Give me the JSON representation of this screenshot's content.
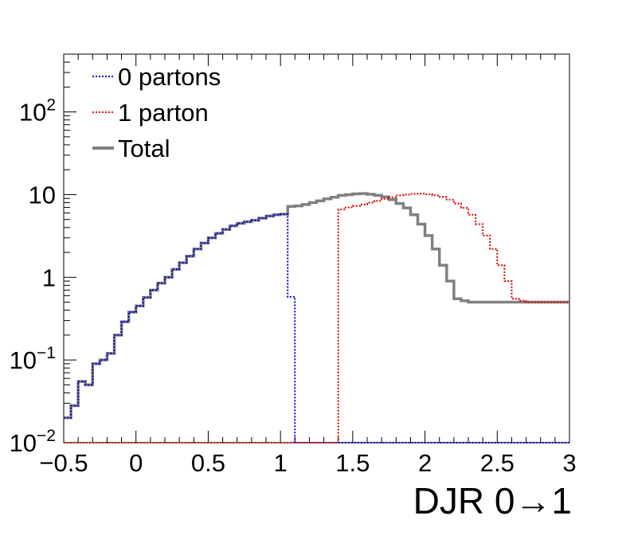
{
  "colors": {
    "zero_partons": "#0000cc",
    "one_parton": "#dd0000",
    "total": "#808080",
    "frame": "#000000"
  },
  "chart_data": {
    "type": "line",
    "title": "",
    "xlabel": "DJR 0→1",
    "ylabel": "",
    "xlim": [
      -0.5,
      3.0
    ],
    "ylim": [
      0.01,
      500
    ],
    "yscale": "log",
    "grid": false,
    "legend_position": "top-left",
    "x_tick_labels": [
      "−0.5",
      "0",
      "0.5",
      "1",
      "1.5",
      "2",
      "2.5",
      "3"
    ],
    "y_tick_labels": [
      {
        "base": "10",
        "exp": "−2",
        "value": 0.01
      },
      {
        "base": "10",
        "exp": "−1",
        "value": 0.1
      },
      {
        "base": "1",
        "exp": "",
        "value": 1
      },
      {
        "base": "10",
        "exp": "",
        "value": 10
      },
      {
        "base": "10",
        "exp": "2",
        "value": 100
      }
    ],
    "bin_width": 0.05,
    "bin_low_edges": [
      -0.5,
      -0.45,
      -0.4,
      -0.35,
      -0.3,
      -0.25,
      -0.2,
      -0.15,
      -0.1,
      -0.05,
      0.0,
      0.05,
      0.1,
      0.15,
      0.2,
      0.25,
      0.3,
      0.35,
      0.4,
      0.45,
      0.5,
      0.55,
      0.6,
      0.65,
      0.7,
      0.75,
      0.8,
      0.85,
      0.9,
      0.95,
      1.0,
      1.05,
      1.1,
      1.15,
      1.2,
      1.25,
      1.3,
      1.35,
      1.4,
      1.45,
      1.5,
      1.55,
      1.6,
      1.65,
      1.7,
      1.75,
      1.8,
      1.85,
      1.9,
      1.95,
      2.0,
      2.05,
      2.1,
      2.15,
      2.2,
      2.25,
      2.3,
      2.35,
      2.4,
      2.45,
      2.5,
      2.55,
      2.6,
      2.65,
      2.7,
      2.75,
      2.8,
      2.85,
      2.9,
      2.95
    ],
    "series": [
      {
        "name": "0 partons",
        "style": "dotted",
        "values": [
          0.02,
          0.028,
          0.055,
          0.05,
          0.09,
          0.1,
          0.12,
          0.2,
          0.29,
          0.38,
          0.45,
          0.57,
          0.7,
          0.85,
          1.0,
          1.25,
          1.5,
          1.8,
          2.2,
          2.6,
          3.0,
          3.4,
          3.8,
          4.2,
          4.5,
          4.7,
          4.9,
          5.2,
          5.5,
          5.7,
          5.8,
          0.58,
          0.01,
          0.01,
          0.01,
          0.01,
          0.01,
          0.01,
          0.01,
          0.01,
          0.01,
          0.01,
          0.01,
          0.01,
          0.01,
          0.01,
          0.01,
          0.01,
          0.01,
          0.01,
          0.01,
          0.01,
          0.01,
          0.01,
          0.01,
          0.01,
          0.01,
          0.01,
          0.01,
          0.01,
          0.01,
          0.01,
          0.01,
          0.01,
          0.01,
          0.01,
          0.01,
          0.01,
          0.01,
          0.01
        ]
      },
      {
        "name": "1 parton",
        "style": "dotted",
        "values": [
          0.01,
          0.01,
          0.01,
          0.01,
          0.01,
          0.01,
          0.01,
          0.01,
          0.01,
          0.01,
          0.01,
          0.01,
          0.01,
          0.01,
          0.01,
          0.01,
          0.01,
          0.01,
          0.01,
          0.01,
          0.01,
          0.01,
          0.01,
          0.01,
          0.01,
          0.01,
          0.01,
          0.01,
          0.01,
          0.01,
          0.01,
          0.01,
          0.01,
          0.01,
          0.01,
          0.01,
          0.01,
          0.01,
          6.6,
          7.0,
          7.3,
          7.6,
          8.0,
          8.4,
          8.9,
          9.3,
          9.8,
          10.0,
          10.2,
          10.3,
          10.1,
          9.8,
          9.4,
          8.7,
          7.8,
          6.9,
          5.7,
          4.4,
          3.2,
          2.2,
          1.4,
          0.9,
          0.55,
          0.52,
          0.5,
          0.5,
          0.5,
          0.5,
          0.5,
          0.5
        ]
      },
      {
        "name": "Total",
        "style": "solid",
        "values": [
          0.02,
          0.028,
          0.055,
          0.05,
          0.09,
          0.1,
          0.12,
          0.2,
          0.29,
          0.38,
          0.45,
          0.57,
          0.7,
          0.85,
          1.0,
          1.25,
          1.5,
          1.8,
          2.2,
          2.6,
          3.0,
          3.4,
          3.8,
          4.2,
          4.5,
          4.7,
          4.9,
          5.2,
          5.5,
          5.7,
          5.8,
          7.2,
          7.3,
          7.6,
          8.0,
          8.4,
          8.9,
          9.3,
          9.8,
          10.0,
          10.2,
          10.3,
          10.1,
          9.8,
          9.4,
          8.7,
          7.8,
          6.9,
          5.7,
          4.4,
          3.2,
          2.2,
          1.4,
          0.9,
          0.55,
          0.52,
          0.5,
          0.5,
          0.5,
          0.5,
          0.5,
          0.5,
          0.5,
          0.5,
          0.5,
          0.5,
          0.5,
          0.5,
          0.5,
          0.5
        ]
      }
    ]
  }
}
